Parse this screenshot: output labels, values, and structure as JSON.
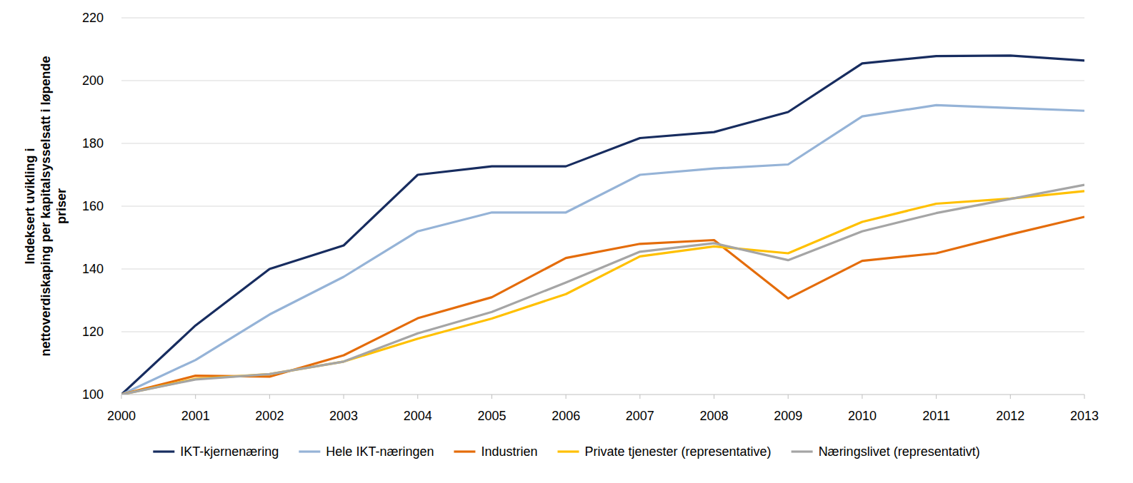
{
  "chart_data": {
    "type": "line",
    "y_label": [
      "Indeksert uvikling i",
      "nettoverdiskaping per kapitalsysselsatt i løpende",
      "priser"
    ],
    "x": [
      2000,
      2001,
      2002,
      2003,
      2004,
      2005,
      2006,
      2007,
      2008,
      2009,
      2010,
      2011,
      2012,
      2013
    ],
    "xlim": [
      2000,
      2013
    ],
    "xticks": [
      2000,
      2001,
      2002,
      2003,
      2004,
      2005,
      2006,
      2007,
      2008,
      2009,
      2010,
      2011,
      2012,
      2013
    ],
    "ylim": [
      100,
      220
    ],
    "yticks": [
      100,
      120,
      140,
      160,
      180,
      200,
      220
    ],
    "grid": true,
    "legend": "bottom",
    "series": [
      {
        "name": "IKT-kjernenæring",
        "color": "#172c5f",
        "values": [
          100,
          122,
          140,
          147.5,
          170,
          172.7,
          172.7,
          181.7,
          183.6,
          190,
          205.5,
          207.8,
          208,
          206.4
        ]
      },
      {
        "name": "Hele IKT-næringen",
        "color": "#95b3d7",
        "values": [
          100,
          111,
          125.5,
          137.5,
          152,
          158,
          158,
          170,
          172,
          173.3,
          188.6,
          192.2,
          191.3,
          190.4
        ]
      },
      {
        "name": "Industrien",
        "color": "#e46c0a",
        "values": [
          100,
          106,
          105.7,
          112.5,
          124.3,
          131,
          143.5,
          148,
          149.2,
          130.6,
          142.6,
          145,
          151,
          156.6
        ]
      },
      {
        "name": "Private tjenester (representative)",
        "color": "#ffc000",
        "values": [
          100,
          105,
          106.5,
          110.5,
          117.8,
          124.2,
          132,
          144,
          147.2,
          145,
          155,
          160.8,
          162.4,
          164.8
        ]
      },
      {
        "name": "Næringslivet (representativt)",
        "color": "#a5a5a5",
        "values": [
          100,
          104.8,
          106.5,
          110.5,
          119.5,
          126.3,
          135.7,
          145.5,
          148.2,
          142.8,
          152,
          157.8,
          162.3,
          166.8
        ]
      }
    ]
  }
}
